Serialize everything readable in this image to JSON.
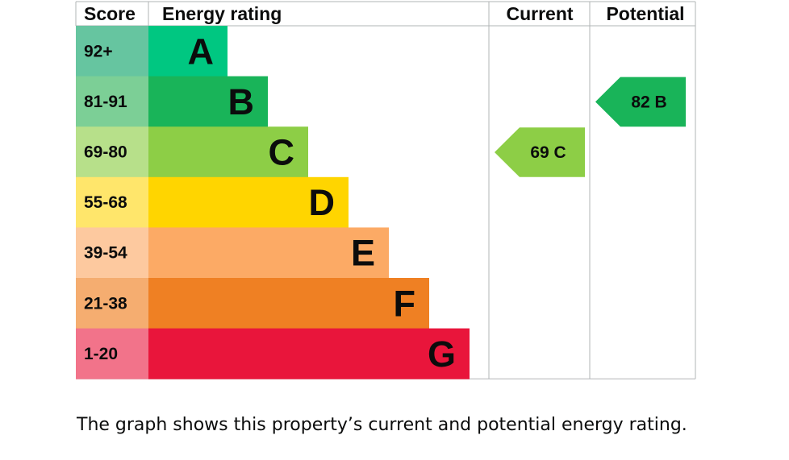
{
  "chart_data": {
    "type": "bar",
    "headers": {
      "score": "Score",
      "rating": "Energy rating",
      "current": "Current",
      "potential": "Potential"
    },
    "bands": [
      {
        "score": "92+",
        "letter": "A",
        "bar_color": "#008054",
        "score_color": "#66c5a0",
        "bar": "#00c781"
      },
      {
        "score": "81-91",
        "letter": "B",
        "bar_color": "#19b459",
        "score_color": "#7ccf96"
      },
      {
        "score": "69-80",
        "letter": "C",
        "bar_color": "#8dce46",
        "score_color": "#b7e08a"
      },
      {
        "score": "55-68",
        "letter": "D",
        "bar_color": "#ffd500",
        "score_color": "#ffe66b"
      },
      {
        "score": "39-54",
        "letter": "E",
        "bar_color": "#fcaa65",
        "score_color": "#fdc99f"
      },
      {
        "score": "21-38",
        "letter": "F",
        "bar_color": "#ef8023",
        "score_color": "#f5ad70"
      },
      {
        "score": "1-20",
        "letter": "G",
        "bar_color": "#e9153b",
        "score_color": "#f2738a"
      }
    ],
    "current": {
      "value": 69,
      "letter": "C",
      "label": "69 C",
      "color": "#8dce46"
    },
    "potential": {
      "value": 82,
      "letter": "B",
      "label": "82 B",
      "color": "#19b459"
    }
  },
  "caption": "The graph shows this property’s current and potential energy rating."
}
